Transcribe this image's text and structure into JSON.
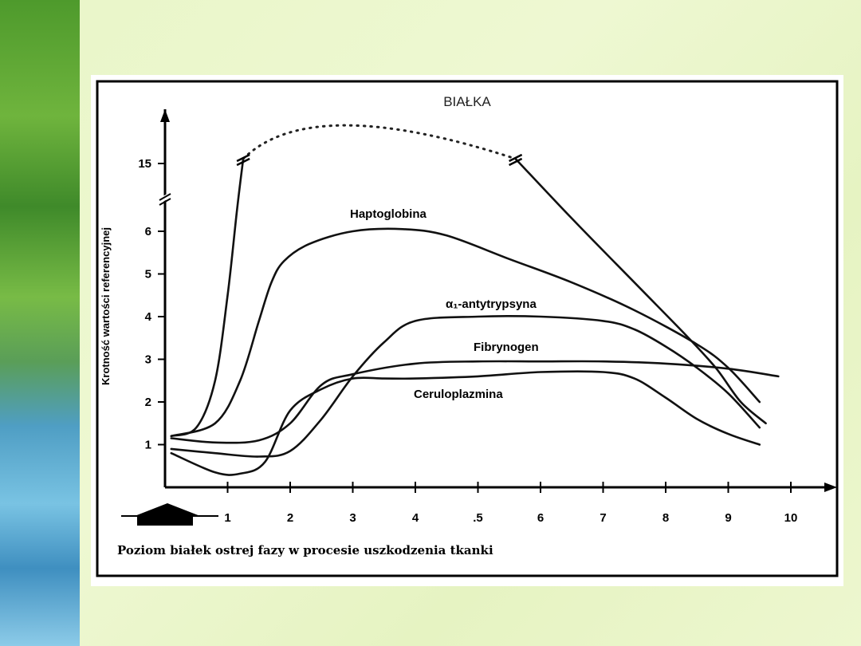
{
  "chart_data": {
    "type": "line",
    "title": "BIAŁKA",
    "ylabel": "Krotność wartości referencyjnej",
    "caption": "Poziom białek ostrej fazy w procesie uszkodzenia tkanki",
    "x_ticks": [
      "1",
      "2",
      "3",
      "4",
      ".5",
      "6",
      "7",
      "8",
      "9",
      "10"
    ],
    "y_ticks": [
      "1",
      "2",
      "3",
      "4",
      "5",
      "6",
      "15"
    ],
    "xlim": [
      0,
      10.4
    ],
    "ylim": [
      0,
      7.5
    ],
    "y_axis_break": true,
    "grid": false,
    "series": [
      {
        "name": "",
        "x": [
          0.1,
          0.5,
          0.8,
          1.0,
          1.15,
          1.25
        ],
        "y": [
          1.2,
          1.4,
          2.5,
          4.5,
          6.5,
          7.7
        ],
        "continues_dotted_above_break": true,
        "peak_y_above_break": 18,
        "returns_at_x": 5.6
      },
      {
        "name": "",
        "x": [
          5.6,
          6.5,
          7.5,
          8.3,
          8.8,
          9.2,
          9.6
        ],
        "y": [
          7.7,
          6.3,
          4.8,
          3.6,
          2.8,
          2.0,
          1.5
        ]
      },
      {
        "name": "Haptoglobina",
        "x": [
          0.1,
          0.8,
          1.2,
          1.5,
          1.7,
          1.9,
          2.3,
          3.0,
          3.8,
          4.5,
          5.5,
          6.5,
          7.5,
          8.5,
          9.0,
          9.5
        ],
        "y": [
          1.2,
          1.5,
          2.5,
          3.9,
          4.8,
          5.3,
          5.7,
          6.0,
          6.05,
          5.9,
          5.35,
          4.8,
          4.15,
          3.35,
          2.8,
          2.0
        ]
      },
      {
        "name": "α₁-antytrypsyna",
        "x": [
          0.1,
          0.8,
          1.5,
          2.0,
          2.5,
          3.0,
          3.5,
          4.0,
          5.0,
          6.0,
          7.0,
          7.5,
          8.0,
          8.5,
          9.0,
          9.5
        ],
        "y": [
          0.9,
          0.8,
          0.72,
          0.85,
          1.6,
          2.6,
          3.4,
          3.9,
          4.0,
          4.0,
          3.9,
          3.7,
          3.3,
          2.8,
          2.2,
          1.4
        ]
      },
      {
        "name": "Fibrynogen",
        "x": [
          0.1,
          0.8,
          1.5,
          2.0,
          2.5,
          3.0,
          4.0,
          5.0,
          6.0,
          7.0,
          8.0,
          9.0,
          9.8
        ],
        "y": [
          1.15,
          1.05,
          1.1,
          1.5,
          2.4,
          2.65,
          2.9,
          2.95,
          2.95,
          2.95,
          2.9,
          2.78,
          2.6
        ]
      },
      {
        "name": "Ceruloplazmina",
        "x": [
          0.1,
          0.8,
          1.2,
          1.6,
          2.0,
          2.5,
          3.0,
          3.5,
          4.0,
          5.0,
          6.0,
          7.0,
          7.5,
          8.0,
          8.5,
          9.0,
          9.5
        ],
        "y": [
          0.8,
          0.35,
          0.32,
          0.6,
          1.8,
          2.3,
          2.55,
          2.55,
          2.55,
          2.6,
          2.7,
          2.7,
          2.55,
          2.1,
          1.6,
          1.25,
          1.0
        ]
      }
    ]
  }
}
